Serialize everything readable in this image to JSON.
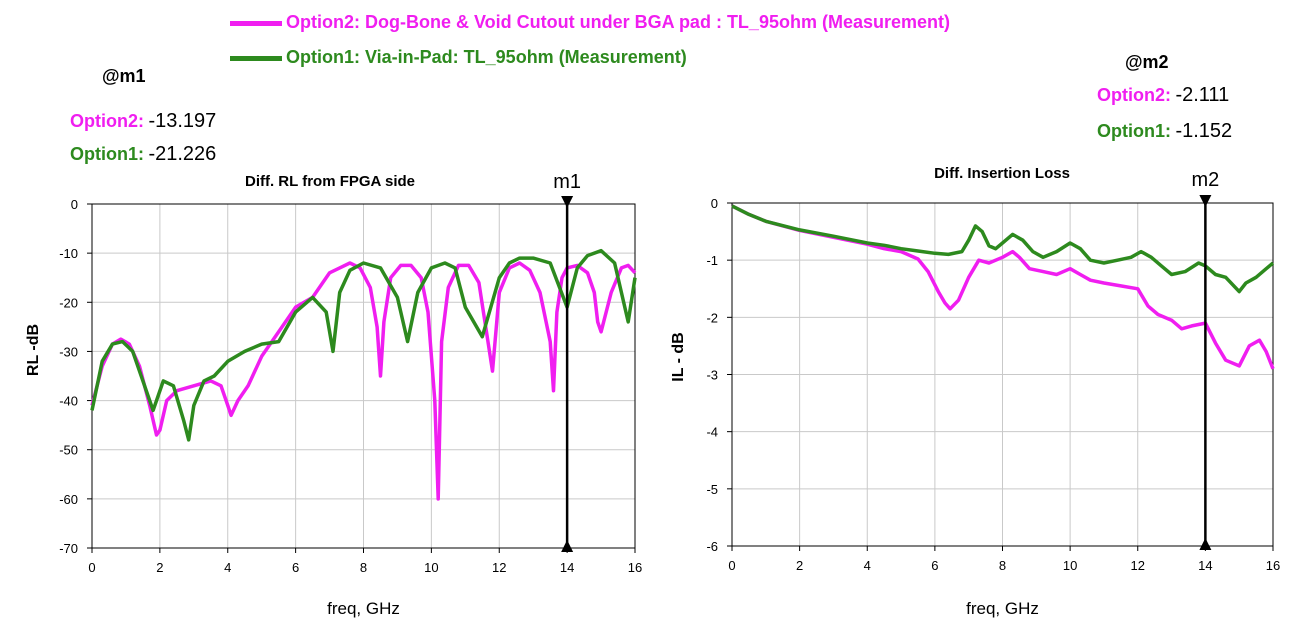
{
  "colors": {
    "option2": "#f01ef0",
    "option1": "#2d8a1e"
  },
  "legend": [
    {
      "label": "Option2:  Dog-Bone  & Void Cutout under BGA pad :  TL_95ohm (Measurement)",
      "color": "#f01ef0"
    },
    {
      "label": "Option1:  Via-in-Pad:  TL_95ohm (Measurement)",
      "color": "#2d8a1e"
    }
  ],
  "marker_readouts": {
    "m1": {
      "heading": "@m1",
      "rows": [
        {
          "label": "Option2:",
          "value": "-13.197"
        },
        {
          "label": "Option1:",
          "value": "-21.226"
        }
      ]
    },
    "m2": {
      "heading": "@m2",
      "rows": [
        {
          "label": "Option2:",
          "value": "-2.111"
        },
        {
          "label": "Option1:",
          "value": "-1.152"
        }
      ]
    }
  },
  "chart_data": [
    {
      "type": "line",
      "title": "Diff. RL from FPGA side",
      "xlabel": "freq, GHz",
      "ylabel": "RL -dB",
      "xlim": [
        0,
        16
      ],
      "ylim": [
        -70,
        0
      ],
      "xticks": [
        0,
        2,
        4,
        6,
        8,
        10,
        12,
        14,
        16
      ],
      "yticks": [
        0,
        -10,
        -20,
        -30,
        -40,
        -50,
        -60,
        -70
      ],
      "grid": true,
      "marker": {
        "name": "m1",
        "x": 14
      },
      "series": [
        {
          "name": "Option2",
          "color": "#f01ef0",
          "x": [
            0,
            0.3,
            0.6,
            0.85,
            1.1,
            1.4,
            1.7,
            1.9,
            2.0,
            2.2,
            2.5,
            3.0,
            3.5,
            3.8,
            4.0,
            4.1,
            4.3,
            4.6,
            5.0,
            5.5,
            6.0,
            6.5,
            7.0,
            7.3,
            7.6,
            7.9,
            8.2,
            8.4,
            8.5,
            8.6,
            8.8,
            9.1,
            9.4,
            9.7,
            9.9,
            10.1,
            10.2,
            10.3,
            10.5,
            10.8,
            11.1,
            11.4,
            11.6,
            11.8,
            12.0,
            12.3,
            12.6,
            12.9,
            13.2,
            13.5,
            13.6,
            13.7,
            13.85,
            14.0,
            14.3,
            14.6,
            14.8,
            14.9,
            15.0,
            15.3,
            15.6,
            15.8,
            16.0
          ],
          "y": [
            -41,
            -33,
            -28.5,
            -27.5,
            -28.5,
            -33,
            -41,
            -47,
            -46,
            -40,
            -38,
            -37,
            -36,
            -37,
            -41,
            -43,
            -40,
            -37,
            -31,
            -26,
            -21,
            -19,
            -14,
            -13,
            -12,
            -13,
            -17,
            -25,
            -35,
            -24,
            -15,
            -12.5,
            -12.5,
            -15,
            -22,
            -40,
            -60,
            -28,
            -17,
            -12.5,
            -12.5,
            -16,
            -25,
            -34,
            -18,
            -13,
            -12,
            -13.5,
            -18,
            -28,
            -38,
            -22,
            -15,
            -13,
            -12.5,
            -14,
            -18,
            -24,
            -26,
            -18,
            -13,
            -12.5,
            -14
          ]
        },
        {
          "name": "Option1",
          "color": "#2d8a1e",
          "x": [
            0,
            0.3,
            0.6,
            0.9,
            1.2,
            1.5,
            1.8,
            2.1,
            2.4,
            2.7,
            2.85,
            3.0,
            3.3,
            3.6,
            4.0,
            4.5,
            5.0,
            5.5,
            6.0,
            6.5,
            6.9,
            7.1,
            7.3,
            7.6,
            8.0,
            8.5,
            9.0,
            9.3,
            9.6,
            10.0,
            10.4,
            10.7,
            11.0,
            11.5,
            12.0,
            12.3,
            12.6,
            13.0,
            13.5,
            14.0,
            14.3,
            14.6,
            15.0,
            15.4,
            15.8,
            16.0
          ],
          "y": [
            -42,
            -32,
            -28.5,
            -28,
            -30,
            -36,
            -42,
            -36,
            -37,
            -44,
            -48,
            -41,
            -36,
            -35,
            -32,
            -30,
            -28.5,
            -28,
            -22,
            -19,
            -22,
            -30,
            -18,
            -13.5,
            -12,
            -13,
            -19,
            -28,
            -18,
            -13,
            -12,
            -13,
            -21,
            -27,
            -15,
            -12,
            -11,
            -11,
            -12,
            -21,
            -13,
            -10.5,
            -9.5,
            -12,
            -24,
            -15
          ]
        }
      ]
    },
    {
      "type": "line",
      "title": "Diff. Insertion Loss",
      "xlabel": "freq, GHz",
      "ylabel": "IL - dB",
      "xlim": [
        0,
        16
      ],
      "ylim": [
        -6,
        0
      ],
      "xticks": [
        0,
        2,
        4,
        6,
        8,
        10,
        12,
        14,
        16
      ],
      "yticks": [
        0,
        -1,
        -2,
        -3,
        -4,
        -5,
        -6
      ],
      "grid": true,
      "marker": {
        "name": "m2",
        "x": 14
      },
      "series": [
        {
          "name": "Option2",
          "color": "#f01ef0",
          "x": [
            0,
            0.5,
            1,
            2,
            3,
            4,
            4.5,
            5,
            5.5,
            5.8,
            6.1,
            6.3,
            6.45,
            6.7,
            7.0,
            7.3,
            7.6,
            8.0,
            8.3,
            8.5,
            8.8,
            9.2,
            9.6,
            10.0,
            10.3,
            10.6,
            11.0,
            11.5,
            12.0,
            12.3,
            12.6,
            13.0,
            13.3,
            13.6,
            14.0,
            14.3,
            14.6,
            15.0,
            15.3,
            15.6,
            15.8,
            16.0
          ],
          "y": [
            -0.05,
            -0.2,
            -0.32,
            -0.48,
            -0.6,
            -0.72,
            -0.8,
            -0.85,
            -0.98,
            -1.2,
            -1.55,
            -1.75,
            -1.85,
            -1.7,
            -1.3,
            -1.0,
            -1.05,
            -0.95,
            -0.85,
            -0.95,
            -1.15,
            -1.2,
            -1.25,
            -1.15,
            -1.25,
            -1.35,
            -1.4,
            -1.45,
            -1.5,
            -1.8,
            -1.95,
            -2.05,
            -2.2,
            -2.15,
            -2.1,
            -2.45,
            -2.75,
            -2.85,
            -2.5,
            -2.4,
            -2.6,
            -2.9
          ]
        },
        {
          "name": "Option1",
          "color": "#2d8a1e",
          "x": [
            0,
            0.5,
            1,
            2,
            3,
            4,
            4.5,
            5,
            5.5,
            6.0,
            6.4,
            6.8,
            7.0,
            7.2,
            7.4,
            7.6,
            7.8,
            8.0,
            8.3,
            8.6,
            8.9,
            9.2,
            9.6,
            10.0,
            10.3,
            10.6,
            11.0,
            11.4,
            11.8,
            12.1,
            12.4,
            12.7,
            13.0,
            13.4,
            13.8,
            14.0,
            14.3,
            14.6,
            15.0,
            15.2,
            15.5,
            15.8,
            16.0
          ],
          "y": [
            -0.05,
            -0.2,
            -0.32,
            -0.47,
            -0.58,
            -0.7,
            -0.74,
            -0.8,
            -0.84,
            -0.88,
            -0.9,
            -0.85,
            -0.65,
            -0.4,
            -0.5,
            -0.75,
            -0.8,
            -0.7,
            -0.55,
            -0.65,
            -0.85,
            -0.95,
            -0.85,
            -0.7,
            -0.8,
            -1.0,
            -1.05,
            -1.0,
            -0.95,
            -0.85,
            -0.95,
            -1.1,
            -1.25,
            -1.2,
            -1.05,
            -1.1,
            -1.25,
            -1.3,
            -1.55,
            -1.4,
            -1.3,
            -1.15,
            -1.05
          ]
        }
      ]
    }
  ]
}
